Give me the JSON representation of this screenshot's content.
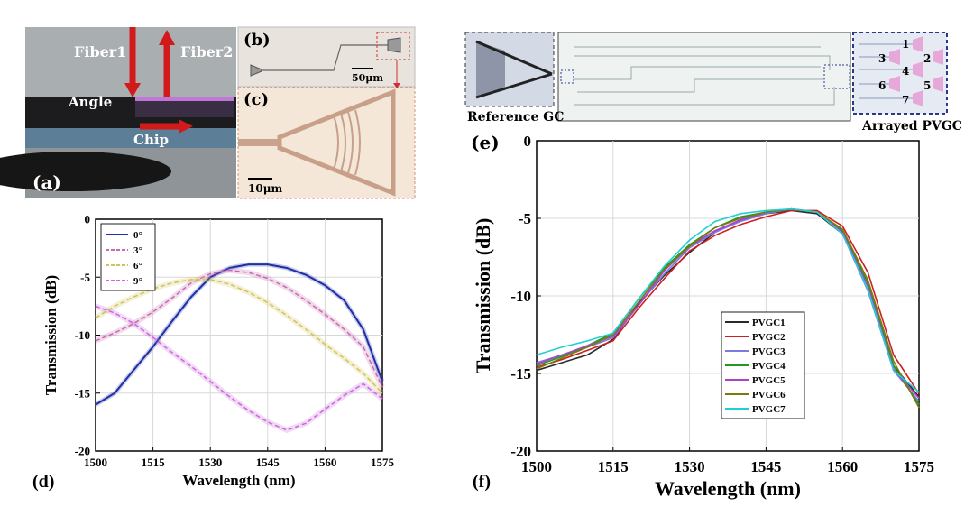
{
  "panel_a": {
    "tag": "(a)",
    "fiber1": "Fiber1",
    "fiber2": "Fiber2",
    "angle": "Angle",
    "chip": "Chip"
  },
  "panel_b": {
    "tag": "(b)",
    "scale": "50μm"
  },
  "panel_c": {
    "tag": "(c)",
    "scale": "10μm"
  },
  "panel_e": {
    "tag": "(e)",
    "ref_label": "Reference GC",
    "arr_label": "Arrayed PVGC",
    "numbers": [
      "1",
      "2",
      "3",
      "4",
      "5",
      "6",
      "7"
    ]
  },
  "colors": {
    "pvgc1": "#2a2a2a",
    "pvgc2": "#cc2020",
    "pvgc3": "#7a7ae0",
    "pvgc4": "#1f9a1f",
    "pvgc5": "#b040c8",
    "pvgc6": "#7a7a10",
    "pvgc7": "#20d0d0",
    "d_0": "#1f2fa8",
    "d_3": "#c86ab0",
    "d_6": "#d2c25a",
    "d_9": "#cc66dd"
  },
  "chart_data": [
    {
      "type": "line",
      "panel": "(d)",
      "xlabel": "Wavelength (nm)",
      "ylabel": "Transmission (dB)",
      "xlim": [
        1500,
        1575
      ],
      "ylim": [
        -20,
        0
      ],
      "xticks": [
        1500,
        1515,
        1530,
        1545,
        1560,
        1575
      ],
      "yticks": [
        0,
        -5,
        -10,
        -15,
        -20
      ],
      "ytick_labels": [
        "0",
        "-5",
        "-10",
        "-15",
        "-20"
      ],
      "grid": true,
      "legend": "top-left",
      "series": [
        {
          "name": "0°",
          "style": "solid",
          "x": [
            1500,
            1505,
            1510,
            1515,
            1520,
            1525,
            1530,
            1535,
            1540,
            1545,
            1550,
            1555,
            1560,
            1565,
            1570,
            1575
          ],
          "y": [
            -16,
            -15,
            -13,
            -11,
            -8.8,
            -6.7,
            -5,
            -4.2,
            -3.9,
            -3.9,
            -4.2,
            -4.8,
            -5.7,
            -7,
            -9.5,
            -14
          ]
        },
        {
          "name": "3°",
          "style": "dashed",
          "x": [
            1500,
            1505,
            1510,
            1515,
            1520,
            1525,
            1530,
            1535,
            1540,
            1545,
            1550,
            1555,
            1560,
            1565,
            1570,
            1575
          ],
          "y": [
            -10.5,
            -9.8,
            -9,
            -8,
            -6.8,
            -5.5,
            -4.7,
            -4.4,
            -4.6,
            -5.1,
            -5.9,
            -7,
            -8.2,
            -9.5,
            -11,
            -14.5
          ]
        },
        {
          "name": "6°",
          "style": "dashed",
          "x": [
            1500,
            1505,
            1510,
            1515,
            1520,
            1525,
            1530,
            1535,
            1540,
            1545,
            1550,
            1555,
            1560,
            1565,
            1570,
            1575
          ],
          "y": [
            -8.5,
            -7.5,
            -6.7,
            -6,
            -5.5,
            -5.2,
            -5.2,
            -5.6,
            -6.3,
            -7.2,
            -8.3,
            -9.5,
            -10.8,
            -12,
            -13.3,
            -15
          ]
        },
        {
          "name": "9°",
          "style": "dashed",
          "x": [
            1500,
            1505,
            1510,
            1515,
            1520,
            1525,
            1530,
            1535,
            1540,
            1545,
            1550,
            1555,
            1560,
            1565,
            1570,
            1575
          ],
          "y": [
            -7.5,
            -8.1,
            -9,
            -10.2,
            -11.5,
            -12.7,
            -14,
            -15.3,
            -16.5,
            -17.5,
            -18.2,
            -17.6,
            -16.4,
            -15.2,
            -14.2,
            -15.5
          ]
        }
      ]
    },
    {
      "type": "line",
      "panel": "(f)",
      "xlabel": "Wavelength (nm)",
      "ylabel": "Transmission (dB)",
      "xlim": [
        1500,
        1575
      ],
      "ylim": [
        -20,
        0
      ],
      "xticks": [
        1500,
        1515,
        1530,
        1545,
        1560,
        1575
      ],
      "yticks": [
        0,
        -5,
        -10,
        -15,
        -20
      ],
      "ytick_labels": [
        "0",
        "-5",
        "-10",
        "-15",
        "-20"
      ],
      "grid": true,
      "legend": "center",
      "x": [
        1500,
        1505,
        1510,
        1515,
        1520,
        1525,
        1530,
        1535,
        1540,
        1545,
        1550,
        1555,
        1560,
        1565,
        1570,
        1575
      ],
      "series": [
        {
          "name": "PVGC1",
          "y": [
            -14.8,
            -14.3,
            -13.8,
            -12.8,
            -10.5,
            -8.7,
            -7.2,
            -5.9,
            -5.1,
            -4.7,
            -4.5,
            -4.7,
            -6,
            -9.5,
            -14.5,
            -16.5
          ]
        },
        {
          "name": "PVGC2",
          "y": [
            -14.6,
            -14.1,
            -13.5,
            -12.9,
            -10.8,
            -8.9,
            -7.1,
            -6.1,
            -5.4,
            -4.9,
            -4.5,
            -4.5,
            -5.5,
            -8.5,
            -13.8,
            -16.3
          ]
        },
        {
          "name": "PVGC3",
          "y": [
            -14.3,
            -13.8,
            -13.3,
            -12.7,
            -10.6,
            -8.6,
            -6.9,
            -5.9,
            -5.2,
            -4.7,
            -4.4,
            -4.6,
            -6,
            -9.7,
            -14.8,
            -16.8
          ]
        },
        {
          "name": "PVGC4",
          "y": [
            -14.5,
            -13.9,
            -13.2,
            -12.4,
            -10.2,
            -8.2,
            -6.7,
            -5.6,
            -4.9,
            -4.6,
            -4.4,
            -4.6,
            -5.8,
            -9.2,
            -14.5,
            -17
          ]
        },
        {
          "name": "PVGC5",
          "y": [
            -14.4,
            -13.8,
            -13.2,
            -12.6,
            -10.6,
            -8.4,
            -6.8,
            -5.8,
            -5.1,
            -4.6,
            -4.4,
            -4.6,
            -5.9,
            -9.4,
            -14.7,
            -16.6
          ]
        },
        {
          "name": "PVGC6",
          "y": [
            -14.7,
            -14,
            -13.3,
            -12.5,
            -10.4,
            -8.3,
            -6.8,
            -5.6,
            -5,
            -4.6,
            -4.4,
            -4.6,
            -5.7,
            -9,
            -14.2,
            -17.2
          ]
        },
        {
          "name": "PVGC7",
          "y": [
            -13.8,
            -13.3,
            -12.9,
            -12.4,
            -10.2,
            -8.1,
            -6.4,
            -5.2,
            -4.7,
            -4.5,
            -4.4,
            -4.6,
            -6,
            -9.6,
            -14.8,
            -16.2
          ]
        }
      ]
    }
  ]
}
